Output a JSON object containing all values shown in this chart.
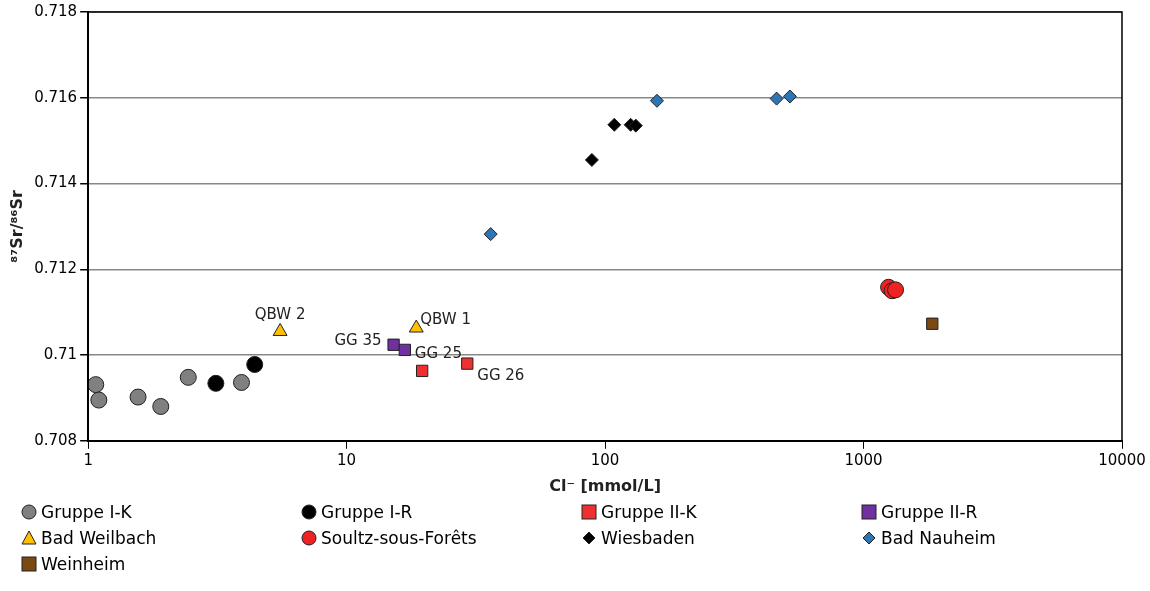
{
  "chart_data": {
    "type": "scatter",
    "xlabel": "Cl⁻ [mmol/L]",
    "ylabel": "⁸⁷Sr/⁸⁶Sr",
    "log": "x",
    "grid": "y",
    "legend": "bottom",
    "xlim": [
      1,
      10000
    ],
    "xticks": [
      1,
      10,
      100,
      1000,
      10000
    ],
    "ylim": [
      0.708,
      0.718
    ],
    "yticks": [
      0.708,
      0.71,
      0.712,
      0.714,
      0.716,
      0.718
    ],
    "series": [
      {
        "name": "Gruppe I-K",
        "color": "#808080",
        "marker": "circle",
        "x": [
          1.07,
          1.1,
          1.56,
          1.91,
          2.44,
          3.92
        ],
        "values": [
          0.70931,
          0.70895,
          0.70902,
          0.7088,
          0.70948,
          0.70936
        ]
      },
      {
        "name": "Gruppe I-R",
        "color": "#000000",
        "marker": "circle",
        "x": [
          3.12,
          4.41
        ],
        "values": [
          0.70934,
          0.70978
        ]
      },
      {
        "name": "Gruppe II-K",
        "color": "#f03030",
        "marker": "square",
        "x": [
          19.6,
          29.3
        ],
        "values": [
          0.70963,
          0.7098
        ]
      },
      {
        "name": "Gruppe II-R",
        "color": "#7030a0",
        "marker": "square",
        "x": [
          15.2,
          16.8
        ],
        "values": [
          0.71024,
          0.71012
        ]
      },
      {
        "name": "Bad Weilbach",
        "color": "#ffc000",
        "marker": "triangle",
        "x": [
          5.53,
          18.6
        ],
        "values": [
          0.71055,
          0.71063
        ]
      },
      {
        "name": "Soultz-sous-Forêts",
        "color": "#ee2222",
        "marker": "circle",
        "x": [
          1250,
          1290,
          1330
        ],
        "values": [
          0.71158,
          0.7115,
          0.71152
        ]
      },
      {
        "name": "Wiesbaden",
        "color": "#000000",
        "marker": "diamond",
        "x": [
          88.9,
          108.6,
          125.6,
          131.5
        ],
        "values": [
          0.71455,
          0.71537,
          0.71537,
          0.71535
        ]
      },
      {
        "name": "Bad Nauheim",
        "color": "#2e75b6",
        "marker": "diamond",
        "x": [
          36.1,
          158.8,
          461,
          519
        ],
        "values": [
          0.71282,
          0.71593,
          0.71598,
          0.71603
        ]
      },
      {
        "name": "Weinheim",
        "color": "#7b4a12",
        "marker": "square",
        "x": [
          1845
        ],
        "values": [
          0.71073
        ]
      }
    ],
    "annotations": [
      {
        "text": "QBW 2",
        "x": 5.53,
        "y": 0.71055
      },
      {
        "text": "QBW 1",
        "x": 18.6,
        "y": 0.71063
      },
      {
        "text": "GG 35",
        "x": 15.2,
        "y": 0.71024
      },
      {
        "text": "GG 25",
        "x": 16.8,
        "y": 0.71012
      },
      {
        "text": "GG 26",
        "x": 29.3,
        "y": 0.7098
      }
    ]
  }
}
